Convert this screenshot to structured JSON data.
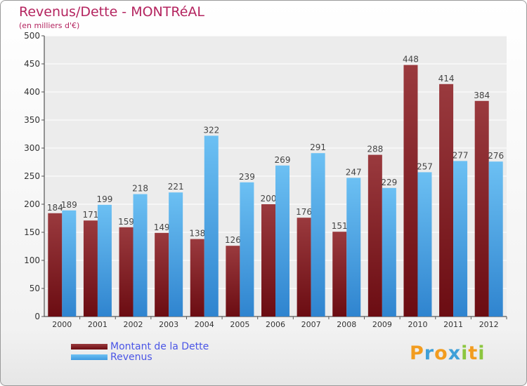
{
  "header": {
    "title": "Revenus/Dette - MONTRéAL",
    "subtitle": "(en milliers d'€)"
  },
  "colors": {
    "dette": "#6b0c12",
    "revenus": "#3f9ae0",
    "title": "#b4245f",
    "legend_text": "#4a55e6"
  },
  "chart_data": {
    "type": "bar",
    "categories": [
      "2000",
      "2001",
      "2002",
      "2003",
      "2004",
      "2005",
      "2006",
      "2007",
      "2008",
      "2009",
      "2010",
      "2011",
      "2012"
    ],
    "series": [
      {
        "name": "Montant de la Dette",
        "values": [
          184,
          171,
          159,
          149,
          138,
          126,
          200,
          176,
          151,
          288,
          448,
          414,
          384
        ]
      },
      {
        "name": "Revenus",
        "values": [
          189,
          199,
          218,
          221,
          322,
          239,
          269,
          291,
          247,
          229,
          257,
          277,
          276
        ]
      }
    ],
    "title": "Revenus/Dette - MONTRéAL",
    "subtitle": "(en milliers d'€)",
    "ylim": [
      0,
      500
    ],
    "yticks": [
      0,
      50,
      100,
      150,
      200,
      250,
      300,
      350,
      400,
      450,
      500
    ],
    "grid": true,
    "legend": "bottom-left"
  },
  "legend": {
    "items": [
      {
        "label": "Montant de la Dette"
      },
      {
        "label": "Revenus"
      }
    ]
  },
  "logo": {
    "letters": [
      "P",
      "r",
      "o",
      "x",
      "i",
      "t",
      "i"
    ],
    "colors": [
      "#f29c1f",
      "#3fa0d8",
      "#f29c1f",
      "#3fa0d8",
      "#8cc63f",
      "#f29c1f",
      "#8cc63f"
    ]
  }
}
